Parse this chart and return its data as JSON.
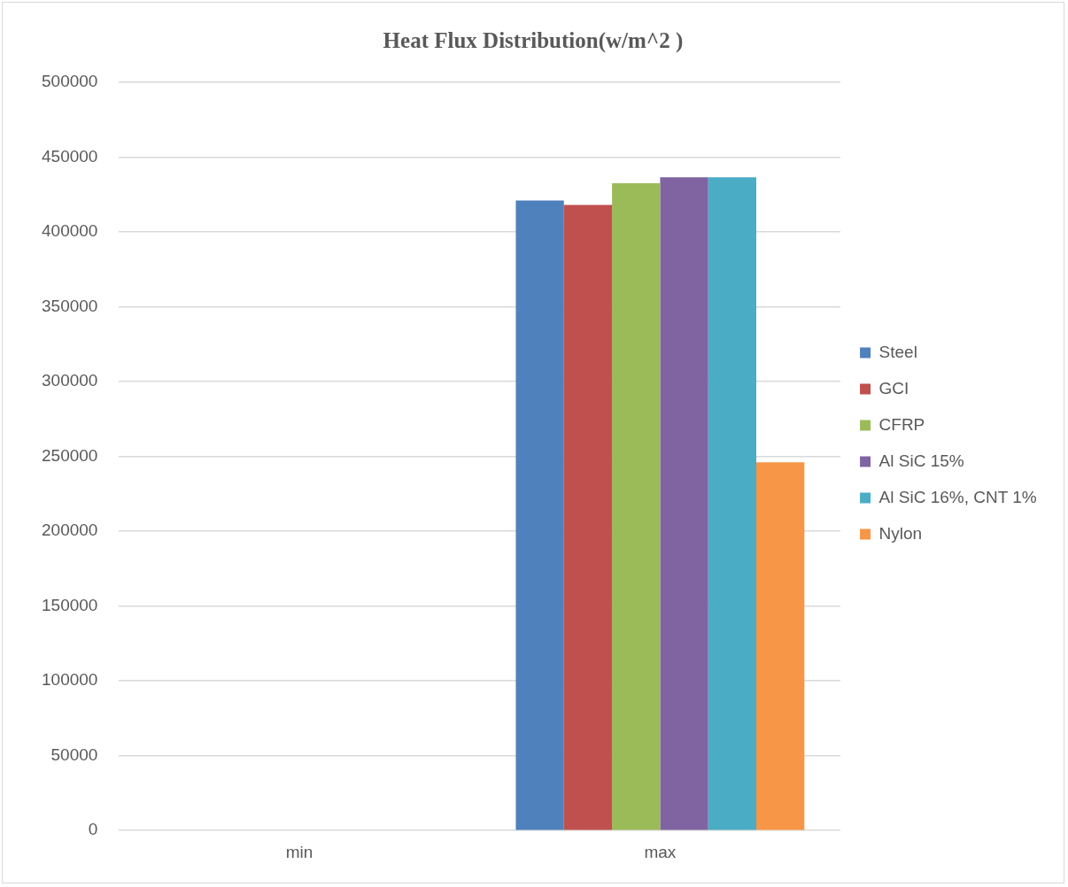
{
  "chart_data": {
    "type": "bar",
    "title": "Heat Flux Distribution(w/m^2 )",
    "categories": [
      "min",
      "max"
    ],
    "series": [
      {
        "name": "Steel",
        "color": "#4f81bd",
        "values": [
          0,
          421000
        ]
      },
      {
        "name": "GCI",
        "color": "#c0504d",
        "values": [
          0,
          418000
        ]
      },
      {
        "name": "CFRP",
        "color": "#9bbb59",
        "values": [
          0,
          432500
        ]
      },
      {
        "name": "Al SiC 15%",
        "color": "#8064a2",
        "values": [
          0,
          436500
        ]
      },
      {
        "name": "Al SiC 16%, CNT 1%",
        "color": "#4bacc6",
        "values": [
          0,
          436500
        ]
      },
      {
        "name": "Nylon",
        "color": "#f79646",
        "values": [
          0,
          246000
        ]
      }
    ],
    "ylim": [
      0,
      500000
    ],
    "yticks": [
      0,
      50000,
      100000,
      150000,
      200000,
      250000,
      300000,
      350000,
      400000,
      450000,
      500000
    ],
    "grid": "y",
    "legend": "right"
  }
}
